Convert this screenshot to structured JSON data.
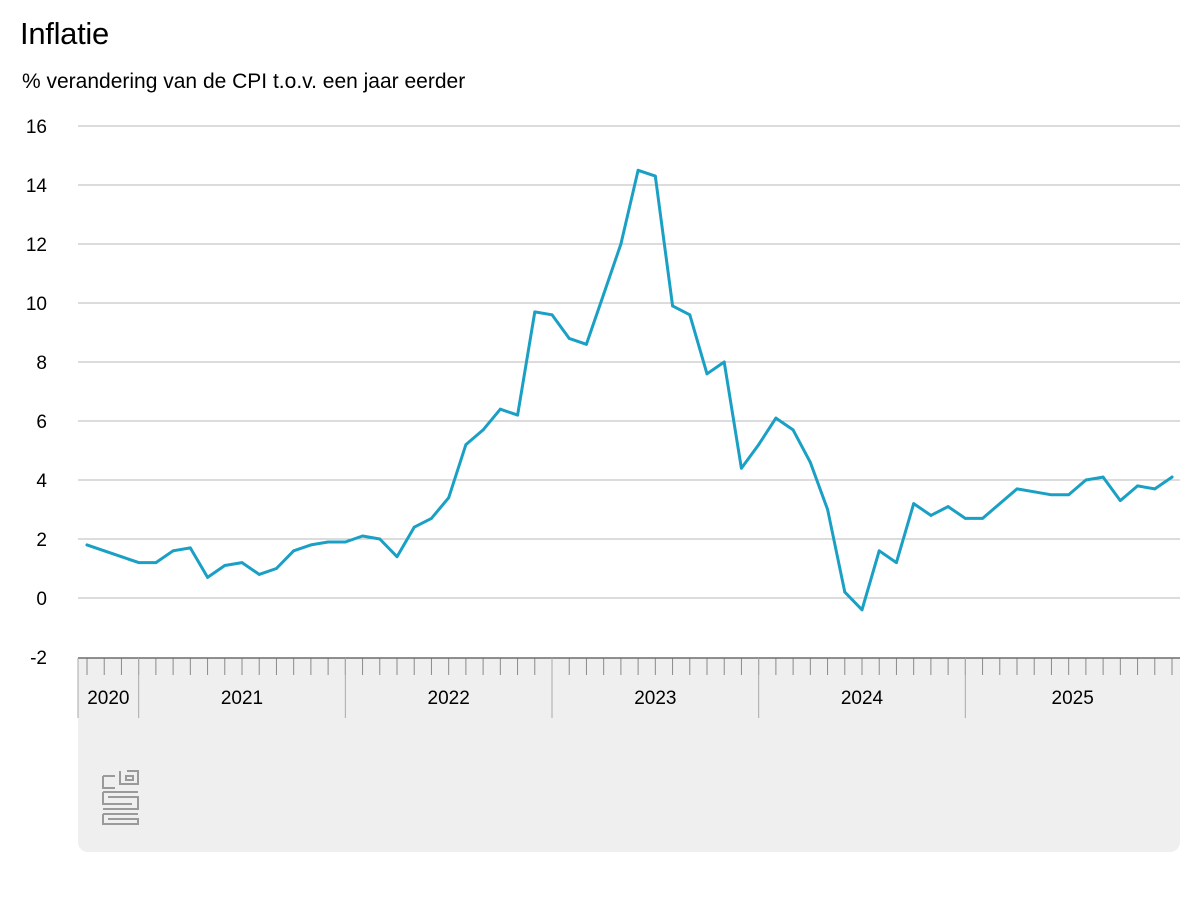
{
  "chart": {
    "title": "Inflatie",
    "subtitle": "% verandering van de CPI t.o.v. een jaar eerder"
  },
  "colors": {
    "line": "#1aa0c4",
    "grid": "#b9b9b9",
    "axis_band": "#efefef",
    "tick": "#8a8a8a",
    "logo": "#9a9a9a"
  },
  "footer": {
    "logo_icon": "cbs-logo-icon"
  },
  "chart_data": {
    "type": "line",
    "title": "Inflatie",
    "ylabel": "% verandering van de CPI t.o.v. een jaar eerder",
    "ylim": [
      -2,
      16
    ],
    "yticks": [
      -2,
      0,
      2,
      4,
      6,
      8,
      10,
      12,
      14,
      16
    ],
    "grid": true,
    "x_tick_labels": [
      "2020",
      "2021",
      "2022",
      "2023",
      "2024",
      "2025"
    ],
    "series": [
      {
        "x": [
          "2020-01",
          "2020-02",
          "2020-03",
          "2020-04",
          "2020-05",
          "2020-06",
          "2020-07",
          "2020-08",
          "2020-09",
          "2020-10",
          "2020-11",
          "2020-12",
          "2021-01",
          "2021-02",
          "2021-03",
          "2021-04",
          "2021-05",
          "2021-06",
          "2021-07",
          "2021-08",
          "2021-09",
          "2021-10",
          "2021-11",
          "2021-12",
          "2022-01",
          "2022-02",
          "2022-03",
          "2022-04",
          "2022-05",
          "2022-06",
          "2022-07",
          "2022-08",
          "2022-09",
          "2022-10",
          "2022-11",
          "2022-12",
          "2023-01",
          "2023-02",
          "2023-03",
          "2023-04",
          "2023-05",
          "2023-06",
          "2023-07",
          "2023-08",
          "2023-09",
          "2023-10",
          "2023-11",
          "2023-12",
          "2024-01",
          "2024-02",
          "2024-03",
          "2024-04",
          "2024-05",
          "2024-06",
          "2024-07",
          "2024-08",
          "2024-09",
          "2024-10",
          "2024-11",
          "2024-12",
          "2025-01",
          "2025-02",
          "2025-03",
          "2025-04"
        ],
        "values": [
          1.8,
          1.6,
          1.4,
          1.2,
          1.2,
          1.6,
          1.7,
          0.7,
          1.1,
          1.2,
          0.8,
          1.0,
          1.6,
          1.8,
          1.9,
          1.9,
          2.1,
          2.0,
          1.4,
          2.4,
          2.7,
          3.4,
          5.2,
          5.7,
          6.4,
          6.2,
          9.7,
          9.6,
          8.8,
          8.6,
          10.3,
          12.0,
          14.5,
          14.3,
          9.9,
          9.6,
          7.6,
          8.0,
          4.4,
          5.2,
          6.1,
          5.7,
          4.6,
          3.0,
          0.2,
          -0.4,
          1.6,
          1.2,
          3.2,
          2.8,
          3.1,
          2.7,
          2.7,
          3.2,
          3.7,
          3.6,
          3.5,
          3.5,
          4.0,
          4.1,
          3.3,
          3.8,
          3.7,
          4.1
        ]
      }
    ]
  }
}
